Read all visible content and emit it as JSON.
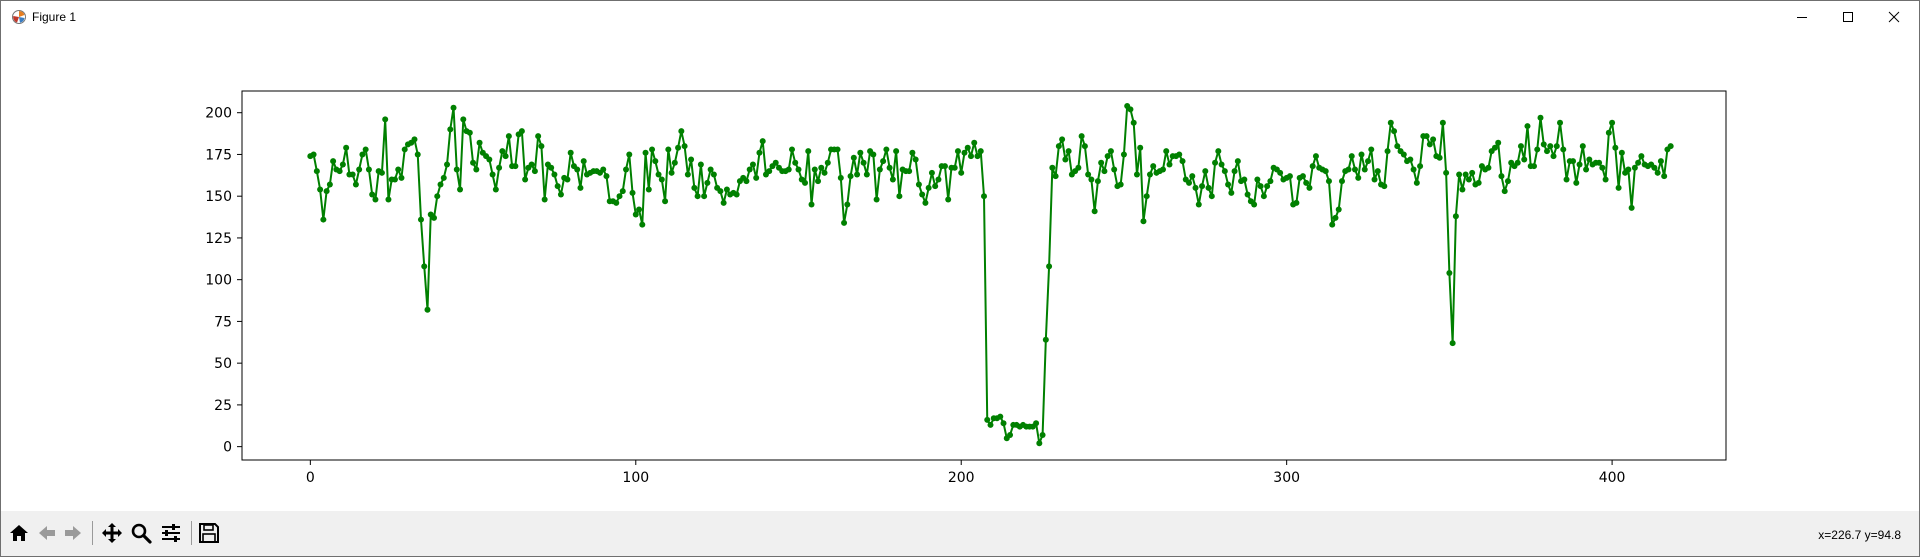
{
  "window": {
    "title": "Figure 1",
    "minimize_icon": "minimize-icon",
    "maximize_icon": "maximize-icon",
    "close_icon": "close-icon"
  },
  "toolbar": {
    "buttons": [
      "home-icon",
      "back-icon",
      "forward-icon",
      "pan-icon",
      "zoom-icon",
      "configure-subplots-icon",
      "save-icon"
    ],
    "coords_text": "x=226.7 y=94.8"
  },
  "chart_data": {
    "type": "line",
    "marker": "circle",
    "color": "#008000",
    "title": "",
    "xlabel": "",
    "ylabel": "",
    "xlim": [
      -21,
      435
    ],
    "ylim": [
      -8,
      213
    ],
    "xticks": [
      0,
      100,
      200,
      300,
      400
    ],
    "yticks": [
      0,
      25,
      50,
      75,
      100,
      125,
      150,
      175,
      200
    ],
    "x_start": 0,
    "x_step": 1,
    "y": [
      174,
      175,
      165,
      154,
      136,
      153,
      157,
      171,
      166,
      165,
      169,
      179,
      163,
      163,
      157,
      166,
      175,
      178,
      166,
      151,
      148,
      165,
      164,
      196,
      148,
      160,
      160,
      166,
      161,
      178,
      181,
      182,
      184,
      175,
      136,
      108,
      82,
      139,
      137,
      150,
      157,
      161,
      169,
      190,
      203,
      166,
      154,
      196,
      189,
      188,
      170,
      166,
      182,
      176,
      174,
      172,
      163,
      154,
      167,
      177,
      174,
      186,
      168,
      168,
      187,
      189,
      160,
      167,
      169,
      165,
      186,
      180,
      148,
      169,
      167,
      163,
      156,
      151,
      161,
      160,
      176,
      168,
      166,
      155,
      171,
      163,
      164,
      165,
      165,
      164,
      166,
      162,
      147,
      147,
      146,
      150,
      153,
      166,
      175,
      152,
      139,
      142,
      133,
      176,
      154,
      178,
      171,
      163,
      160,
      147,
      178,
      164,
      170,
      179,
      189,
      180,
      163,
      172,
      155,
      150,
      169,
      150,
      158,
      166,
      163,
      155,
      153,
      146,
      154,
      151,
      152,
      151,
      159,
      161,
      159,
      166,
      169,
      161,
      176,
      183,
      163,
      165,
      168,
      170,
      167,
      165,
      165,
      166,
      178,
      170,
      166,
      160,
      158,
      177,
      145,
      166,
      159,
      167,
      164,
      170,
      178,
      178,
      178,
      161,
      134,
      145,
      162,
      173,
      163,
      176,
      170,
      163,
      177,
      175,
      148,
      166,
      171,
      178,
      167,
      160,
      177,
      150,
      166,
      165,
      165,
      176,
      172,
      157,
      151,
      146,
      155,
      164,
      156,
      160,
      168,
      168,
      148,
      167,
      167,
      177,
      164,
      176,
      179,
      174,
      182,
      174,
      177,
      150,
      16,
      13,
      17,
      17,
      18,
      14,
      5,
      7,
      13,
      13,
      12,
      13,
      12,
      12,
      12,
      14,
      2,
      7,
      64,
      108,
      167,
      162,
      180,
      184,
      172,
      177,
      163,
      165,
      167,
      186,
      180,
      163,
      160,
      141,
      159,
      170,
      165,
      174,
      177,
      166,
      156,
      157,
      175,
      204,
      202,
      194,
      163,
      179,
      135,
      150,
      163,
      168,
      164,
      165,
      166,
      177,
      169,
      174,
      174,
      175,
      171,
      160,
      158,
      162,
      155,
      145,
      156,
      165,
      155,
      150,
      170,
      177,
      169,
      165,
      157,
      152,
      165,
      171,
      159,
      160,
      151,
      147,
      145,
      160,
      156,
      150,
      156,
      159,
      167,
      166,
      164,
      160,
      161,
      162,
      145,
      146,
      161,
      162,
      158,
      155,
      168,
      174,
      167,
      166,
      165,
      159,
      133,
      137,
      142,
      159,
      165,
      166,
      174,
      166,
      161,
      175,
      166,
      171,
      178,
      160,
      165,
      157,
      156,
      177,
      194,
      189,
      180,
      177,
      175,
      171,
      172,
      166,
      158,
      168,
      186,
      186,
      181,
      184,
      174,
      173,
      194,
      164,
      104,
      62,
      138,
      163,
      154,
      163,
      160,
      164,
      157,
      158,
      168,
      166,
      167,
      177,
      179,
      182,
      162,
      153,
      159,
      170,
      168,
      170,
      180,
      172,
      192,
      168,
      168,
      178,
      197,
      181,
      177,
      180,
      174,
      180,
      194,
      178,
      160,
      171,
      171,
      158,
      169,
      180,
      166,
      172,
      169,
      170,
      170,
      167,
      160,
      188,
      194,
      179,
      155,
      176,
      164,
      166,
      143,
      167,
      170,
      174,
      169,
      168,
      169,
      167,
      164,
      171,
      162,
      178,
      180
    ]
  }
}
